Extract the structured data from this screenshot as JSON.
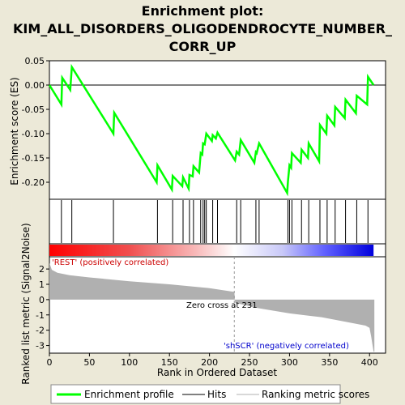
{
  "title_line1": "Enrichment plot:",
  "title_line2": "KIM_ALL_DISORDERS_OLIGODENDROCYTE_NUMBER_",
  "title_line3": "CORR_UP",
  "colors": {
    "background": "#ece9d8",
    "es_line": "#00ff00",
    "hit": "#000000",
    "metric_fill": "#b0b0b0",
    "pos_label": "#cc0000",
    "neg_label": "#0000cc"
  },
  "chart_data": [
    {
      "type": "line",
      "name": "enrichment-score-panel",
      "ylabel": "Enrichment score (ES)",
      "ylim": [
        -0.235,
        0.05
      ],
      "xlim": [
        0,
        420
      ],
      "yticks": [
        "0.05",
        "0.00",
        "-0.05",
        "-0.10",
        "-0.15",
        "-0.20"
      ],
      "ytick_values": [
        0.05,
        0.0,
        -0.05,
        -0.1,
        -0.15,
        -0.2
      ],
      "grid": false,
      "points": [
        [
          0,
          0.0
        ],
        [
          15,
          -0.04
        ],
        [
          16,
          0.015
        ],
        [
          26,
          -0.01
        ],
        [
          28,
          0.037
        ],
        [
          80,
          -0.1
        ],
        [
          81,
          -0.057
        ],
        [
          134,
          -0.2
        ],
        [
          135,
          -0.165
        ],
        [
          153,
          -0.215
        ],
        [
          154,
          -0.187
        ],
        [
          166,
          -0.208
        ],
        [
          167,
          -0.19
        ],
        [
          174,
          -0.213
        ],
        [
          175,
          -0.185
        ],
        [
          179,
          -0.188
        ],
        [
          180,
          -0.167
        ],
        [
          187,
          -0.18
        ],
        [
          189,
          -0.14
        ],
        [
          191,
          -0.143
        ],
        [
          192,
          -0.12
        ],
        [
          194,
          -0.122
        ],
        [
          196,
          -0.1
        ],
        [
          203,
          -0.115
        ],
        [
          204,
          -0.103
        ],
        [
          208,
          -0.11
        ],
        [
          210,
          -0.098
        ],
        [
          232,
          -0.155
        ],
        [
          234,
          -0.137
        ],
        [
          237,
          -0.143
        ],
        [
          239,
          -0.113
        ],
        [
          256,
          -0.16
        ],
        [
          258,
          -0.138
        ],
        [
          259,
          -0.14
        ],
        [
          262,
          -0.12
        ],
        [
          297,
          -0.222
        ],
        [
          298,
          -0.198
        ],
        [
          300,
          -0.165
        ],
        [
          302,
          -0.17
        ],
        [
          303,
          -0.14
        ],
        [
          314,
          -0.16
        ],
        [
          315,
          -0.133
        ],
        [
          323,
          -0.15
        ],
        [
          324,
          -0.12
        ],
        [
          337,
          -0.157
        ],
        [
          338,
          -0.082
        ],
        [
          346,
          -0.1
        ],
        [
          347,
          -0.063
        ],
        [
          356,
          -0.083
        ],
        [
          357,
          -0.045
        ],
        [
          369,
          -0.068
        ],
        [
          370,
          -0.03
        ],
        [
          383,
          -0.058
        ],
        [
          384,
          -0.022
        ],
        [
          397,
          -0.04
        ],
        [
          398,
          0.017
        ],
        [
          405,
          0.0
        ]
      ]
    },
    {
      "type": "scatter",
      "name": "hits-panel",
      "xlabel": "",
      "hits": [
        15,
        28,
        80,
        135,
        154,
        167,
        175,
        180,
        189,
        192,
        194,
        196,
        204,
        210,
        234,
        239,
        258,
        262,
        298,
        300,
        303,
        315,
        324,
        338,
        347,
        357,
        370,
        384,
        398
      ]
    },
    {
      "type": "area",
      "name": "ranked-metric-panel",
      "xlabel": "Rank in Ordered Dataset",
      "ylabel": "Ranked list metric (Signal2Noise)",
      "ylim": [
        -3.5,
        2.8
      ],
      "xlim": [
        0,
        420
      ],
      "xticks": [
        "0",
        "50",
        "100",
        "150",
        "200",
        "250",
        "300",
        "350",
        "400"
      ],
      "xtick_values": [
        0,
        50,
        100,
        150,
        200,
        250,
        300,
        350,
        400
      ],
      "yticks": [
        "2",
        "1",
        "0",
        "-1",
        "-2",
        "-3"
      ],
      "ytick_values": [
        2,
        1,
        0,
        -1,
        -2,
        -3
      ],
      "grid": false,
      "points": [
        [
          0,
          2.4
        ],
        [
          3,
          1.95
        ],
        [
          10,
          1.75
        ],
        [
          25,
          1.6
        ],
        [
          50,
          1.45
        ],
        [
          100,
          1.2
        ],
        [
          150,
          1.0
        ],
        [
          200,
          0.75
        ],
        [
          231,
          0.5
        ],
        [
          232,
          -0.2
        ],
        [
          260,
          -0.55
        ],
        [
          300,
          -0.9
        ],
        [
          340,
          -1.15
        ],
        [
          370,
          -1.45
        ],
        [
          395,
          -1.7
        ],
        [
          400,
          -1.85
        ],
        [
          402,
          -2.4
        ],
        [
          405,
          -3.4
        ],
        [
          406,
          -3.4
        ]
      ],
      "zero_cross_label": "Zero cross at 231",
      "zero_cross_rank": 231,
      "pos_label": "'REST' (positively correlated)",
      "neg_label": "'shSCR' (negatively correlated)"
    }
  ],
  "legend": {
    "placement": "bottom",
    "items": [
      {
        "label": "Enrichment profile",
        "color": "#00ff00",
        "style": "thick-line"
      },
      {
        "label": "Hits",
        "color": "#000000",
        "style": "thin-line"
      },
      {
        "label": "Ranking metric scores",
        "color": "#b0b0b0",
        "style": "thin-line"
      }
    ]
  }
}
